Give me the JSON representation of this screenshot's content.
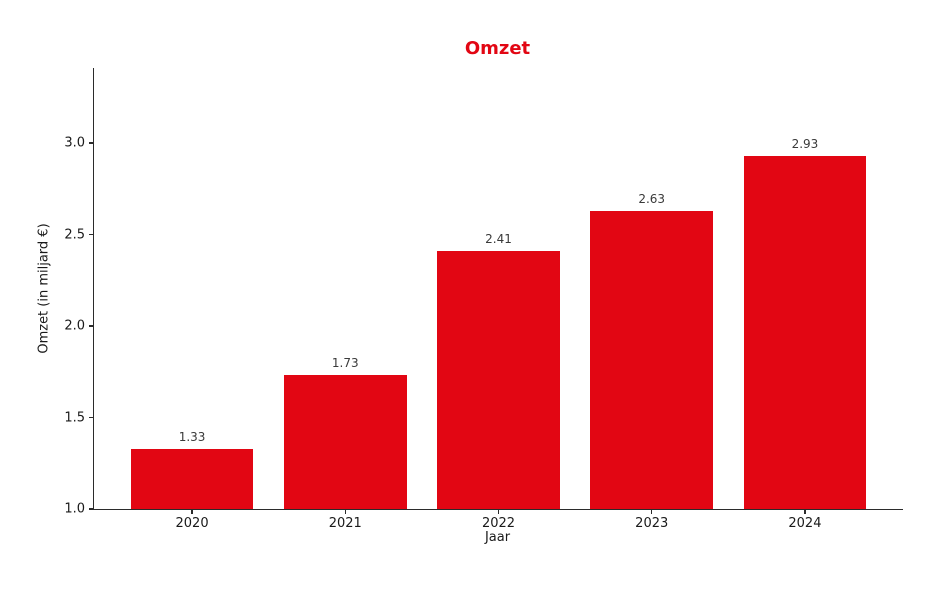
{
  "chart_data": {
    "type": "bar",
    "title": "Omzet",
    "xlabel": "Jaar",
    "ylabel": "Omzet (in miljard €)",
    "categories": [
      "2020",
      "2021",
      "2022",
      "2023",
      "2024"
    ],
    "values": [
      1.33,
      1.73,
      2.41,
      2.63,
      2.93
    ],
    "value_labels": [
      "1.33",
      "1.73",
      "2.41",
      "2.63",
      "2.93"
    ],
    "yticks": [
      1.0,
      1.5,
      2.0,
      2.5,
      3.0
    ],
    "ytick_labels": [
      "1.0",
      "1.5",
      "2.0",
      "2.5",
      "3.0"
    ],
    "ylim": [
      1.0,
      3.41
    ],
    "xlim_units": 5.28,
    "first_center_unit": 0.64,
    "bar_width_unit": 0.8,
    "grid": false,
    "legend": null,
    "bar_color": "#e20613",
    "title_color": "#e20613",
    "axis_color": "#2b2b2b",
    "tick_label_color": "#1a1a1a",
    "value_label_color": "#3a3a3a"
  }
}
